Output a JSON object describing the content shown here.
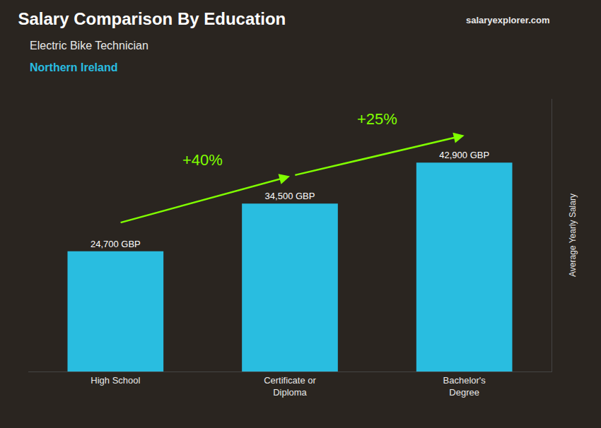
{
  "chart_data": {
    "type": "bar",
    "title": "Salary Comparison By Education",
    "subtitle": "Electric Bike Technician",
    "ylabel": "Average Yearly Salary",
    "categories": [
      "High School",
      "Certificate or\nDiploma",
      "Bachelor's\nDegree"
    ],
    "values": [
      24700,
      34500,
      42900
    ],
    "value_labels": [
      "24,700 GBP",
      "34,500 GBP",
      "42,900 GBP"
    ],
    "data_labels": true,
    "color": "#29bde0",
    "ylim": [
      0,
      56000
    ],
    "grid": false,
    "tick_labels": "x",
    "annotations": [
      {
        "text": "Northern Ireland"
      },
      {
        "text": "salaryexplorer.com"
      },
      {
        "text": "+40%",
        "from": "High School",
        "to": "Certificate or\nDiploma",
        "color": "#80ff00"
      },
      {
        "text": "+25%",
        "from": "Certificate or\nDiploma",
        "to": "Bachelor's\nDegree",
        "color": "#80ff00"
      }
    ]
  }
}
